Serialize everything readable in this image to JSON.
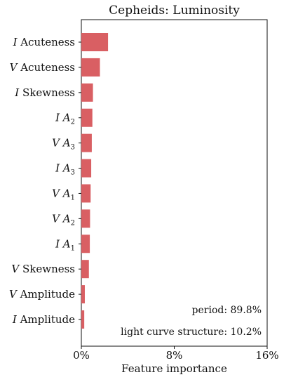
{
  "chart_data": {
    "type": "bar",
    "orientation": "horizontal",
    "title": "Cepheids: Luminosity",
    "xlabel": "Feature importance",
    "ylabel": "",
    "xlim": [
      0,
      16
    ],
    "xticks": [
      {
        "value": 0,
        "label": "0%"
      },
      {
        "value": 8,
        "label": "8%"
      },
      {
        "value": 16,
        "label": "16%"
      }
    ],
    "bar_color": "#d95f63",
    "grid": false,
    "categories": [
      {
        "prefix": "I",
        "base": "Acuteness",
        "sub": ""
      },
      {
        "prefix": "V",
        "base": "Acuteness",
        "sub": ""
      },
      {
        "prefix": "I",
        "base": "Skewness",
        "sub": ""
      },
      {
        "prefix": "I",
        "base": "A",
        "sub": "2"
      },
      {
        "prefix": "V",
        "base": "A",
        "sub": "3"
      },
      {
        "prefix": "I",
        "base": "A",
        "sub": "3"
      },
      {
        "prefix": "V",
        "base": "A",
        "sub": "1"
      },
      {
        "prefix": "V",
        "base": "A",
        "sub": "2"
      },
      {
        "prefix": "I",
        "base": "A",
        "sub": "1"
      },
      {
        "prefix": "V",
        "base": "Skewness",
        "sub": ""
      },
      {
        "prefix": "V",
        "base": "Amplitude",
        "sub": ""
      },
      {
        "prefix": "I",
        "base": "Amplitude",
        "sub": ""
      }
    ],
    "values": [
      2.3,
      1.6,
      1.0,
      0.95,
      0.9,
      0.85,
      0.8,
      0.75,
      0.73,
      0.65,
      0.3,
      0.25
    ],
    "annotations": [
      "period: 89.8%",
      "light curve structure: 10.2%"
    ]
  }
}
